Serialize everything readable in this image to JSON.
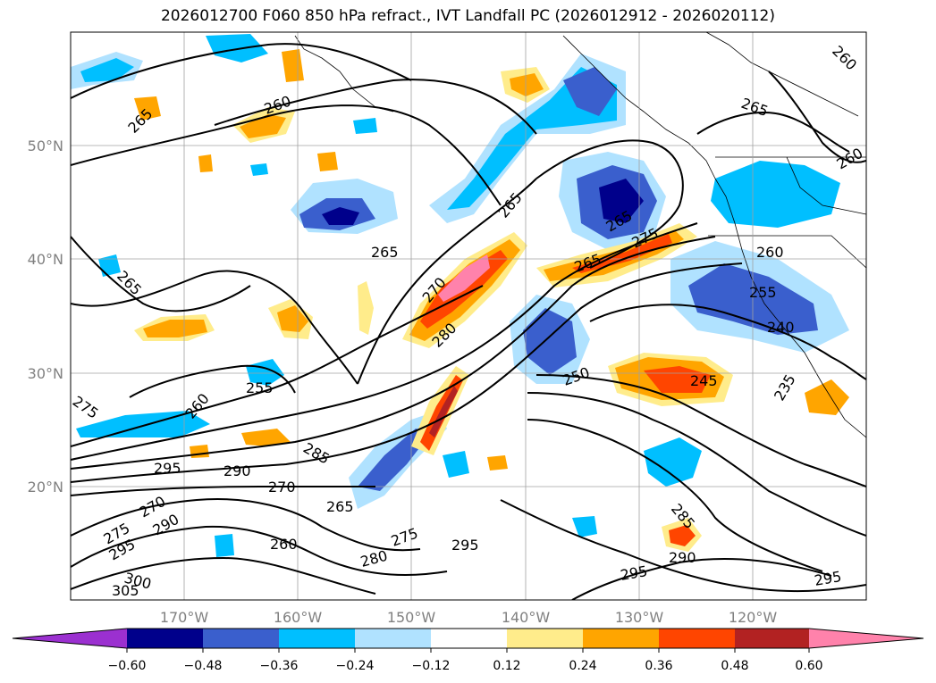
{
  "title": "2026012700 F060 850 hPa refract., IVT Landfall PC (2026012912 - 2026020112)",
  "map": {
    "lon_labels": [
      "170°W",
      "160°W",
      "150°W",
      "140°W",
      "130°W",
      "120°W"
    ],
    "lat_labels": [
      "50°N",
      "40°N",
      "30°N",
      "20°N"
    ],
    "contour_labels": [
      "265",
      "260",
      "265",
      "265",
      "265",
      "260",
      "260",
      "265",
      "275",
      "270",
      "280",
      "265",
      "265",
      "255",
      "240",
      "260",
      "255",
      "275",
      "260",
      "285",
      "295",
      "290",
      "270",
      "265",
      "275",
      "270",
      "290",
      "295",
      "300",
      "305",
      "260",
      "280",
      "275",
      "295",
      "250",
      "245",
      "235",
      "285",
      "290",
      "295",
      "295"
    ]
  },
  "colorbar": {
    "ticks": [
      "−0.60",
      "−0.48",
      "−0.36",
      "−0.24",
      "−0.12",
      "0.12",
      "0.24",
      "0.36",
      "0.48",
      "0.60"
    ],
    "colors": [
      "#9b30d0",
      "#00008b",
      "#3a5fcd",
      "#00bfff",
      "#b0e2ff",
      "#ffffff",
      "#ffec8b",
      "#ffa500",
      "#ff4500",
      "#b22222",
      "#ff82ab"
    ]
  }
}
